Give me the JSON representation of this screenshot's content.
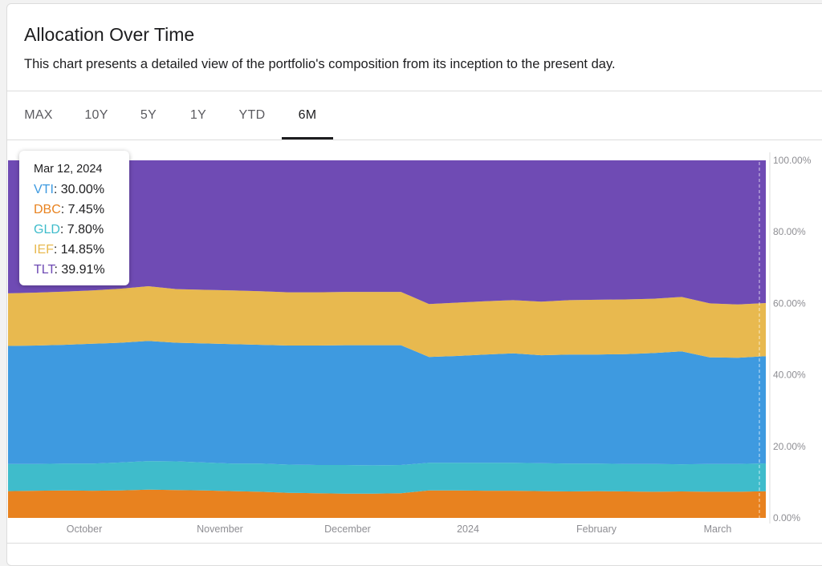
{
  "header": {
    "title": "Allocation Over Time",
    "subtitle": "This chart presents a detailed view of the portfolio's composition from its inception to the present day."
  },
  "tabs": [
    {
      "label": "MAX"
    },
    {
      "label": "10Y"
    },
    {
      "label": "5Y"
    },
    {
      "label": "1Y"
    },
    {
      "label": "YTD"
    },
    {
      "label": "6M",
      "active": true
    }
  ],
  "tooltip": {
    "date": "Mar 12, 2024",
    "rows": [
      {
        "ticker": "VTI",
        "value": "30.00%",
        "color": "#3e9ae0"
      },
      {
        "ticker": "DBC",
        "value": "7.45%",
        "color": "#e8821f"
      },
      {
        "ticker": "GLD",
        "value": "7.80%",
        "color": "#3fbccb"
      },
      {
        "ticker": "IEF",
        "value": "14.85%",
        "color": "#e8b94f"
      },
      {
        "ticker": "TLT",
        "value": "39.91%",
        "color": "#6f4bb4"
      }
    ]
  },
  "chart_data": {
    "type": "area",
    "stacked": true,
    "x_tick_labels": [
      "October",
      "November",
      "December",
      "2024",
      "February",
      "March"
    ],
    "y_tick_labels": [
      "0.00%",
      "20.00%",
      "40.00%",
      "60.00%",
      "80.00%",
      "100.00%"
    ],
    "ylim": [
      0,
      100
    ],
    "grid": false,
    "legend": "tooltip",
    "series": [
      {
        "name": "DBC",
        "color": "#e8821f",
        "values": [
          7.5,
          7.6,
          7.7,
          7.6,
          7.7,
          7.9,
          7.8,
          7.7,
          7.5,
          7.3,
          7.0,
          6.9,
          6.8,
          6.8,
          6.9,
          7.7,
          7.7,
          7.6,
          7.6,
          7.5,
          7.4,
          7.5,
          7.4,
          7.3,
          7.4,
          7.3,
          7.3,
          7.45
        ]
      },
      {
        "name": "GLD",
        "color": "#3fbccb",
        "values": [
          7.6,
          7.5,
          7.5,
          7.6,
          7.8,
          8.0,
          8.0,
          7.8,
          7.7,
          7.9,
          7.9,
          7.9,
          8.0,
          7.9,
          7.9,
          7.7,
          7.7,
          7.8,
          7.8,
          7.8,
          7.8,
          7.7,
          7.7,
          7.8,
          7.6,
          7.8,
          7.8,
          7.8
        ]
      },
      {
        "name": "VTI",
        "color": "#3e9ae0",
        "values": [
          33.0,
          33.1,
          33.2,
          33.5,
          33.5,
          33.6,
          33.2,
          33.3,
          33.4,
          33.2,
          33.3,
          33.4,
          33.5,
          33.6,
          33.5,
          29.6,
          29.9,
          30.3,
          30.6,
          30.2,
          30.5,
          30.5,
          30.7,
          31.0,
          31.6,
          29.8,
          29.7,
          30.0
        ]
      },
      {
        "name": "IEF",
        "color": "#e8b94f",
        "values": [
          14.7,
          14.8,
          14.9,
          14.9,
          15.1,
          15.3,
          15.0,
          15.0,
          15.0,
          15.0,
          14.9,
          14.9,
          14.9,
          14.9,
          14.9,
          14.8,
          14.9,
          14.9,
          14.9,
          15.0,
          15.2,
          15.3,
          15.3,
          15.2,
          15.2,
          15.1,
          14.9,
          14.85
        ]
      },
      {
        "name": "TLT",
        "color": "#6f4bb4",
        "values": [
          37.2,
          37.0,
          36.7,
          36.4,
          35.9,
          35.2,
          36.0,
          36.2,
          36.4,
          36.6,
          36.9,
          36.9,
          36.8,
          36.8,
          36.8,
          40.2,
          39.8,
          39.4,
          39.1,
          39.5,
          39.1,
          39.0,
          38.9,
          38.7,
          38.2,
          40.0,
          40.3,
          39.91
        ]
      }
    ]
  }
}
